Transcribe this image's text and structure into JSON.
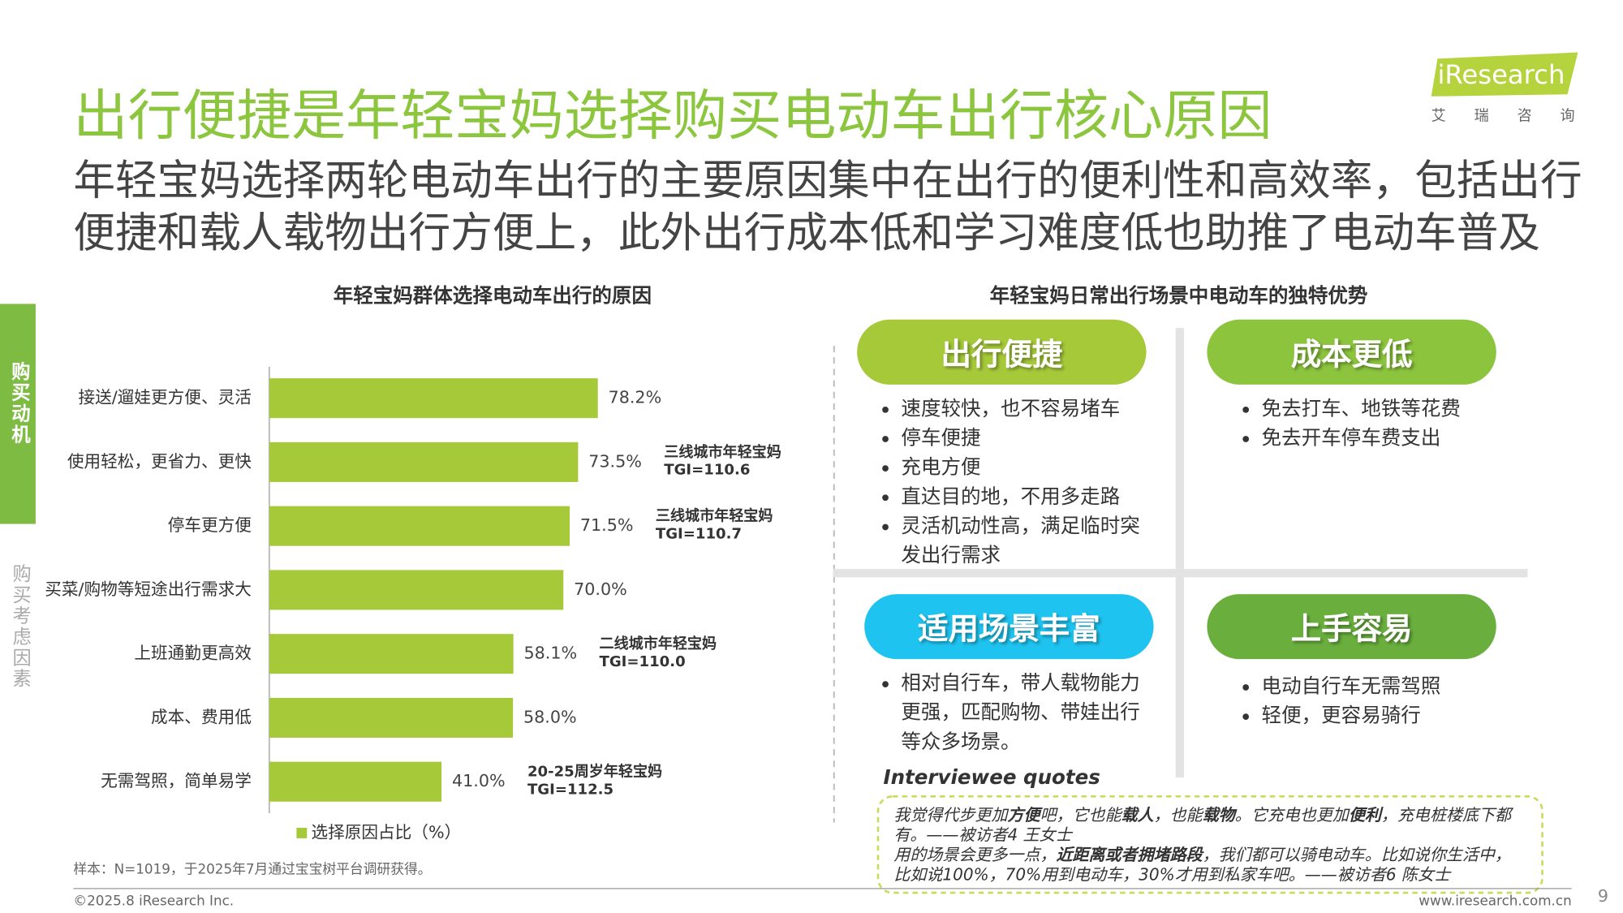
{
  "header": {
    "title": "出行便捷是年轻宝妈选择购买电动车出行核心原因",
    "subtitle": [
      "年轻宝妈选择两轮电动车出行的主要原因集中在出行的便利性和高效率，包括出行",
      "便捷和载人载物出行方便上，此外出行成本低和学习难度低也助推了电动车普及"
    ]
  },
  "logo": {
    "brand": "iResearch",
    "tagline": "艾瑞咨询"
  },
  "sidebar": {
    "active": "购买动机",
    "inactive": "购买考虑因素"
  },
  "chart_data": {
    "type": "bar",
    "orientation": "horizontal",
    "title": "年轻宝妈群体选择电动车出行的原因",
    "categories": [
      "接送/遛娃更方便、灵活",
      "使用轻松，更省力、更快",
      "停车更方便",
      "买菜/购物等短途出行需求大",
      "上班通勤更高效",
      "成本、费用低",
      "无需驾照，简单易学"
    ],
    "series": [
      {
        "name": "选择原因占比（%）",
        "color": "#a6c93a",
        "values": [
          78.2,
          73.5,
          71.5,
          70.0,
          58.1,
          58.0,
          41.0
        ],
        "value_labels": [
          "78.2%",
          "73.5%",
          "71.5%",
          "70.0%",
          "58.1%",
          "58.0%",
          "41.0%"
        ]
      }
    ],
    "annotations": [
      null,
      {
        "group": "三线城市年轻宝妈",
        "tgi": "TGI=110.6"
      },
      {
        "group": "三线城市年轻宝妈",
        "tgi": "TGI=110.7"
      },
      null,
      {
        "group": "二线城市年轻宝妈",
        "tgi": "TGI=110.0"
      },
      null,
      {
        "group": "20-25周岁年轻宝妈",
        "tgi": "TGI=112.5"
      }
    ]
  },
  "note": "样本：N=1019，于2025年7月通过宝宝树平台调研获得。",
  "advantages": {
    "title": "年轻宝妈日常出行场景中电动车的独特优势",
    "quadrants": [
      {
        "label": "出行便捷",
        "color": "#a6c93a",
        "items": [
          "速度较快，也不容易堵车",
          "停车便捷",
          "充电方便",
          "直达目的地，不用多走路",
          "灵活机动性高，满足临时突发出行需求"
        ]
      },
      {
        "label": "成本更低",
        "color": "#8cc43e",
        "items": [
          "免去打车、地铁等花费",
          "免去开车停车费支出"
        ]
      },
      {
        "label": "适用场景丰富",
        "color": "#1fc3ef",
        "items": [
          "相对自行车，带人载物能力更强，匹配购物、带娃出行等众多场景。"
        ]
      },
      {
        "label": "上手容易",
        "color": "#6aaf3e",
        "items": [
          "电动自行车无需驾照",
          "轻便，更容易骑行"
        ]
      }
    ],
    "quotes": {
      "title": "Interviewee quotes",
      "items": [
        [
          {
            "text": "我觉得代步更加"
          },
          {
            "text": "方便",
            "bold": true
          },
          {
            "text": "吧，它也能"
          },
          {
            "text": "载人",
            "bold": true
          },
          {
            "text": "，也能"
          },
          {
            "text": "载物",
            "bold": true
          },
          {
            "text": "。它充电也更加"
          },
          {
            "text": "便利",
            "bold": true
          },
          {
            "text": "，充电桩楼底下都有。——被访者4 王女士"
          }
        ],
        [
          {
            "text": "用的场景会更多一点，"
          },
          {
            "text": "近距离或者拥堵路段",
            "bold": true
          },
          {
            "text": "，我们都可以骑电动车。比如说你生活中，比如说100%，70%用到电动车，30%才用到私家车吧。——被访者6 陈女士"
          }
        ]
      ]
    }
  },
  "footer": {
    "copyright": "©2025.8 iResearch Inc.",
    "website": "www.iresearch.com.cn",
    "page": 9
  }
}
